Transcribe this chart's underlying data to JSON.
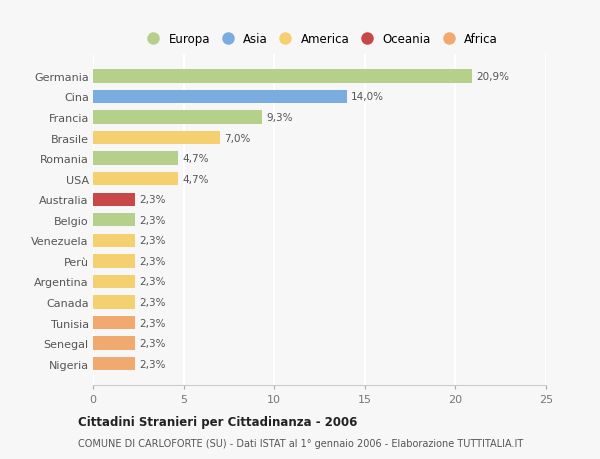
{
  "categories": [
    "Germania",
    "Cina",
    "Francia",
    "Brasile",
    "Romania",
    "USA",
    "Australia",
    "Belgio",
    "Venezuela",
    "Perù",
    "Argentina",
    "Canada",
    "Tunisia",
    "Senegal",
    "Nigeria"
  ],
  "values": [
    20.9,
    14.0,
    9.3,
    7.0,
    4.7,
    4.7,
    2.3,
    2.3,
    2.3,
    2.3,
    2.3,
    2.3,
    2.3,
    2.3,
    2.3
  ],
  "labels": [
    "20,9%",
    "14,0%",
    "9,3%",
    "7,0%",
    "4,7%",
    "4,7%",
    "2,3%",
    "2,3%",
    "2,3%",
    "2,3%",
    "2,3%",
    "2,3%",
    "2,3%",
    "2,3%",
    "2,3%"
  ],
  "bar_colors": [
    "#b5d08a",
    "#7aace0",
    "#b5d08a",
    "#f5d070",
    "#b5d08a",
    "#f5d070",
    "#c84848",
    "#b5d08a",
    "#f5d070",
    "#f5d070",
    "#f5d070",
    "#f5d070",
    "#f0aa70",
    "#f0aa70",
    "#f0aa70"
  ],
  "continent_colors": {
    "Europa": "#b5d08a",
    "Asia": "#7aace0",
    "America": "#f5d070",
    "Oceania": "#c84848",
    "Africa": "#f0aa70"
  },
  "xlim": [
    0,
    25
  ],
  "xticks": [
    0,
    5,
    10,
    15,
    20,
    25
  ],
  "title": "Cittadini Stranieri per Cittadinanza - 2006",
  "subtitle": "COMUNE DI CARLOFORTE (SU) - Dati ISTAT al 1° gennaio 2006 - Elaborazione TUTTITALIA.IT",
  "background_color": "#f7f7f7",
  "grid_color": "#ffffff",
  "bar_height": 0.65
}
